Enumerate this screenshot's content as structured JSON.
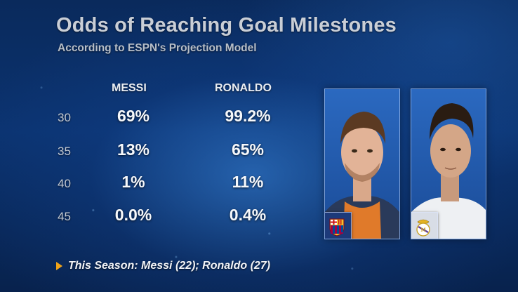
{
  "header": {
    "title": "Odds of Reaching Goal Milestones",
    "subtitle": "According to ESPN's Projection Model"
  },
  "table": {
    "columns": [
      "MESSI",
      "RONALDO"
    ],
    "rows": [
      {
        "milestone": "30",
        "messi": "69%",
        "ronaldo": "99.2%"
      },
      {
        "milestone": "35",
        "messi": "13%",
        "ronaldo": "65%"
      },
      {
        "milestone": "40",
        "messi": "1%",
        "ronaldo": "11%"
      },
      {
        "milestone": "45",
        "messi": "0.0%",
        "ronaldo": "0.4%"
      }
    ]
  },
  "players": [
    {
      "name_icon": "messi-photo",
      "club_badge": "fc-barcelona-crest-icon"
    },
    {
      "name_icon": "ronaldo-photo",
      "club_badge": "real-madrid-crest-icon"
    }
  ],
  "footer": {
    "note": "This Season: Messi (22); Ronaldo (27)",
    "accent_color": "#f0a318"
  },
  "colors": {
    "background": "#0b3370",
    "text": "#f6f8fb",
    "header_text": "#c9ced6"
  }
}
